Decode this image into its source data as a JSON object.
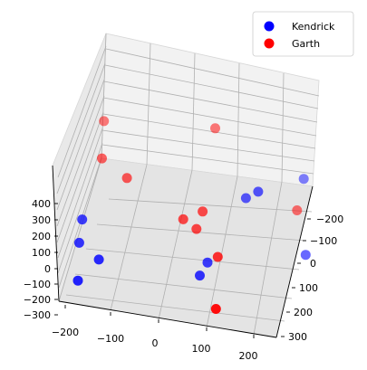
{
  "chart_data": {
    "type": "scatter",
    "projection": "3d",
    "grid": true,
    "legend_position": "top-right",
    "x_ticks": [
      "−200",
      "−100",
      "0",
      "100",
      "200"
    ],
    "y_ticks": [
      "−200",
      "−100",
      "0",
      "100",
      "200",
      "300"
    ],
    "z_ticks": [
      "400",
      "300",
      "200",
      "100",
      "0",
      "−100",
      "−200",
      "−300"
    ],
    "xlim": [
      -250,
      250
    ],
    "ylim": [
      -250,
      300
    ],
    "zlim": [
      -300,
      450
    ],
    "series": [
      {
        "name": "Kendrick",
        "color": "#0000ff",
        "points": [
          {
            "x": 162,
            "y": -55,
            "z": 360
          },
          {
            "x": 135,
            "y": -60,
            "z": 300
          },
          {
            "x": 235,
            "y": -210,
            "z": 220
          },
          {
            "x": 60,
            "y": 90,
            "z": 30
          },
          {
            "x": 70,
            "y": 50,
            "z": 50
          },
          {
            "x": 255,
            "y": -110,
            "z": -80
          },
          {
            "x": -200,
            "y": 40,
            "z": 180
          },
          {
            "x": -200,
            "y": 80,
            "z": 100
          },
          {
            "x": -150,
            "y": 130,
            "z": 100
          },
          {
            "x": -190,
            "y": 160,
            "z": 0
          }
        ]
      },
      {
        "name": "Garth",
        "color": "#ff0000",
        "points": [
          {
            "x": 50,
            "y": -180,
            "z": 500
          },
          {
            "x": -190,
            "y": -190,
            "z": 420
          },
          {
            "x": -180,
            "y": -100,
            "z": 340
          },
          {
            "x": -120,
            "y": -60,
            "z": 310
          },
          {
            "x": 10,
            "y": 0,
            "z": 210
          },
          {
            "x": 40,
            "y": 10,
            "z": 180
          },
          {
            "x": 50,
            "y": -10,
            "z": 260
          },
          {
            "x": 230,
            "y": -150,
            "z": 120
          },
          {
            "x": 100,
            "y": 100,
            "z": 180
          },
          {
            "x": 120,
            "y": 250,
            "z": 110
          }
        ]
      }
    ]
  }
}
